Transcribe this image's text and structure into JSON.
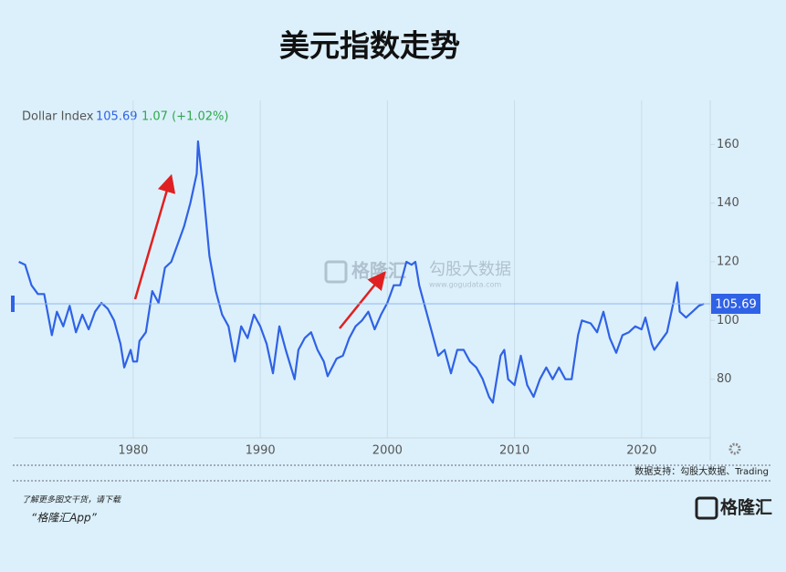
{
  "chart_data": {
    "type": "line",
    "title": "美元指数走势",
    "series": [
      {
        "name": "Dollar Index",
        "color": "#2f62e6",
        "values": [
          120,
          119,
          112,
          109,
          109,
          95,
          103,
          98,
          105,
          96,
          102,
          97,
          103,
          106,
          104,
          100,
          92,
          84,
          90,
          86,
          86,
          93,
          96,
          110,
          106,
          118,
          120,
          126,
          132,
          140,
          150,
          161,
          145,
          122,
          110,
          102,
          98,
          86,
          98,
          94,
          102,
          98,
          92,
          82,
          98,
          90,
          80,
          90,
          94,
          96,
          90,
          86,
          81,
          87,
          88,
          94,
          98,
          100,
          103,
          97,
          102,
          106,
          112,
          112,
          120,
          119,
          120,
          112,
          104,
          96,
          88,
          90,
          82,
          90,
          90,
          86,
          84,
          80,
          74,
          72,
          88,
          90,
          80,
          78,
          88,
          78,
          74,
          80,
          84,
          80,
          84,
          80,
          80,
          95,
          100,
          99,
          96,
          103,
          94,
          89,
          95,
          96,
          98,
          97,
          101,
          92,
          90,
          93,
          96,
          106,
          113,
          103,
          101,
          103,
          105,
          105.69
        ]
      }
    ],
    "x": [
      1971.0,
      1971.5,
      1972.0,
      1972.5,
      1973.0,
      1973.6,
      1974.0,
      1974.5,
      1975.0,
      1975.5,
      1976.0,
      1976.5,
      1977.0,
      1977.5,
      1978.0,
      1978.5,
      1979.0,
      1979.3,
      1979.8,
      1980.0,
      1980.3,
      1980.5,
      1981.0,
      1981.5,
      1982.0,
      1982.5,
      1983.0,
      1983.5,
      1984.0,
      1984.5,
      1985.0,
      1985.1,
      1985.5,
      1986.0,
      1986.5,
      1987.0,
      1987.5,
      1988.0,
      1988.5,
      1989.0,
      1989.5,
      1990.0,
      1990.5,
      1991.0,
      1991.5,
      1992.0,
      1992.7,
      1993.0,
      1993.5,
      1994.0,
      1994.5,
      1995.0,
      1995.3,
      1996.0,
      1996.5,
      1997.0,
      1997.5,
      1998.0,
      1998.5,
      1999.0,
      1999.5,
      2000.0,
      2000.5,
      2001.0,
      2001.5,
      2001.9,
      2002.2,
      2002.5,
      2003.0,
      2003.5,
      2004.0,
      2004.5,
      2005.0,
      2005.5,
      2006.0,
      2006.5,
      2007.0,
      2007.5,
      2008.0,
      2008.3,
      2008.9,
      2009.2,
      2009.5,
      2010.0,
      2010.5,
      2011.0,
      2011.5,
      2012.0,
      2012.5,
      2013.0,
      2013.5,
      2014.0,
      2014.5,
      2015.0,
      2015.3,
      2016.0,
      2016.5,
      2017.0,
      2017.5,
      2018.0,
      2018.5,
      2019.0,
      2019.5,
      2020.0,
      2020.3,
      2020.8,
      2021.0,
      2021.5,
      2022.0,
      2022.5,
      2022.8,
      2023.0,
      2023.5,
      2024.0,
      2024.5,
      2024.9
    ],
    "xlim": [
      1970.6,
      2025.4
    ],
    "xticks": [
      1980,
      1990,
      2000,
      2010,
      2020
    ],
    "ylim": [
      60,
      175
    ],
    "yticks": [
      80,
      100,
      120,
      140,
      160
    ],
    "grid": "x",
    "current_value": 105.69,
    "change": "1.07 (+1.02%)",
    "watermark": {
      "logo": "格隆汇",
      "brand": "勾股大数据",
      "url": "www.gogudata.com"
    },
    "source": "数据支持：勾股大数据、Trading",
    "footer": {
      "line1": "了解更多图文干货，请下载",
      "line2": "“格隆汇App”",
      "logo": "格隆汇"
    }
  }
}
